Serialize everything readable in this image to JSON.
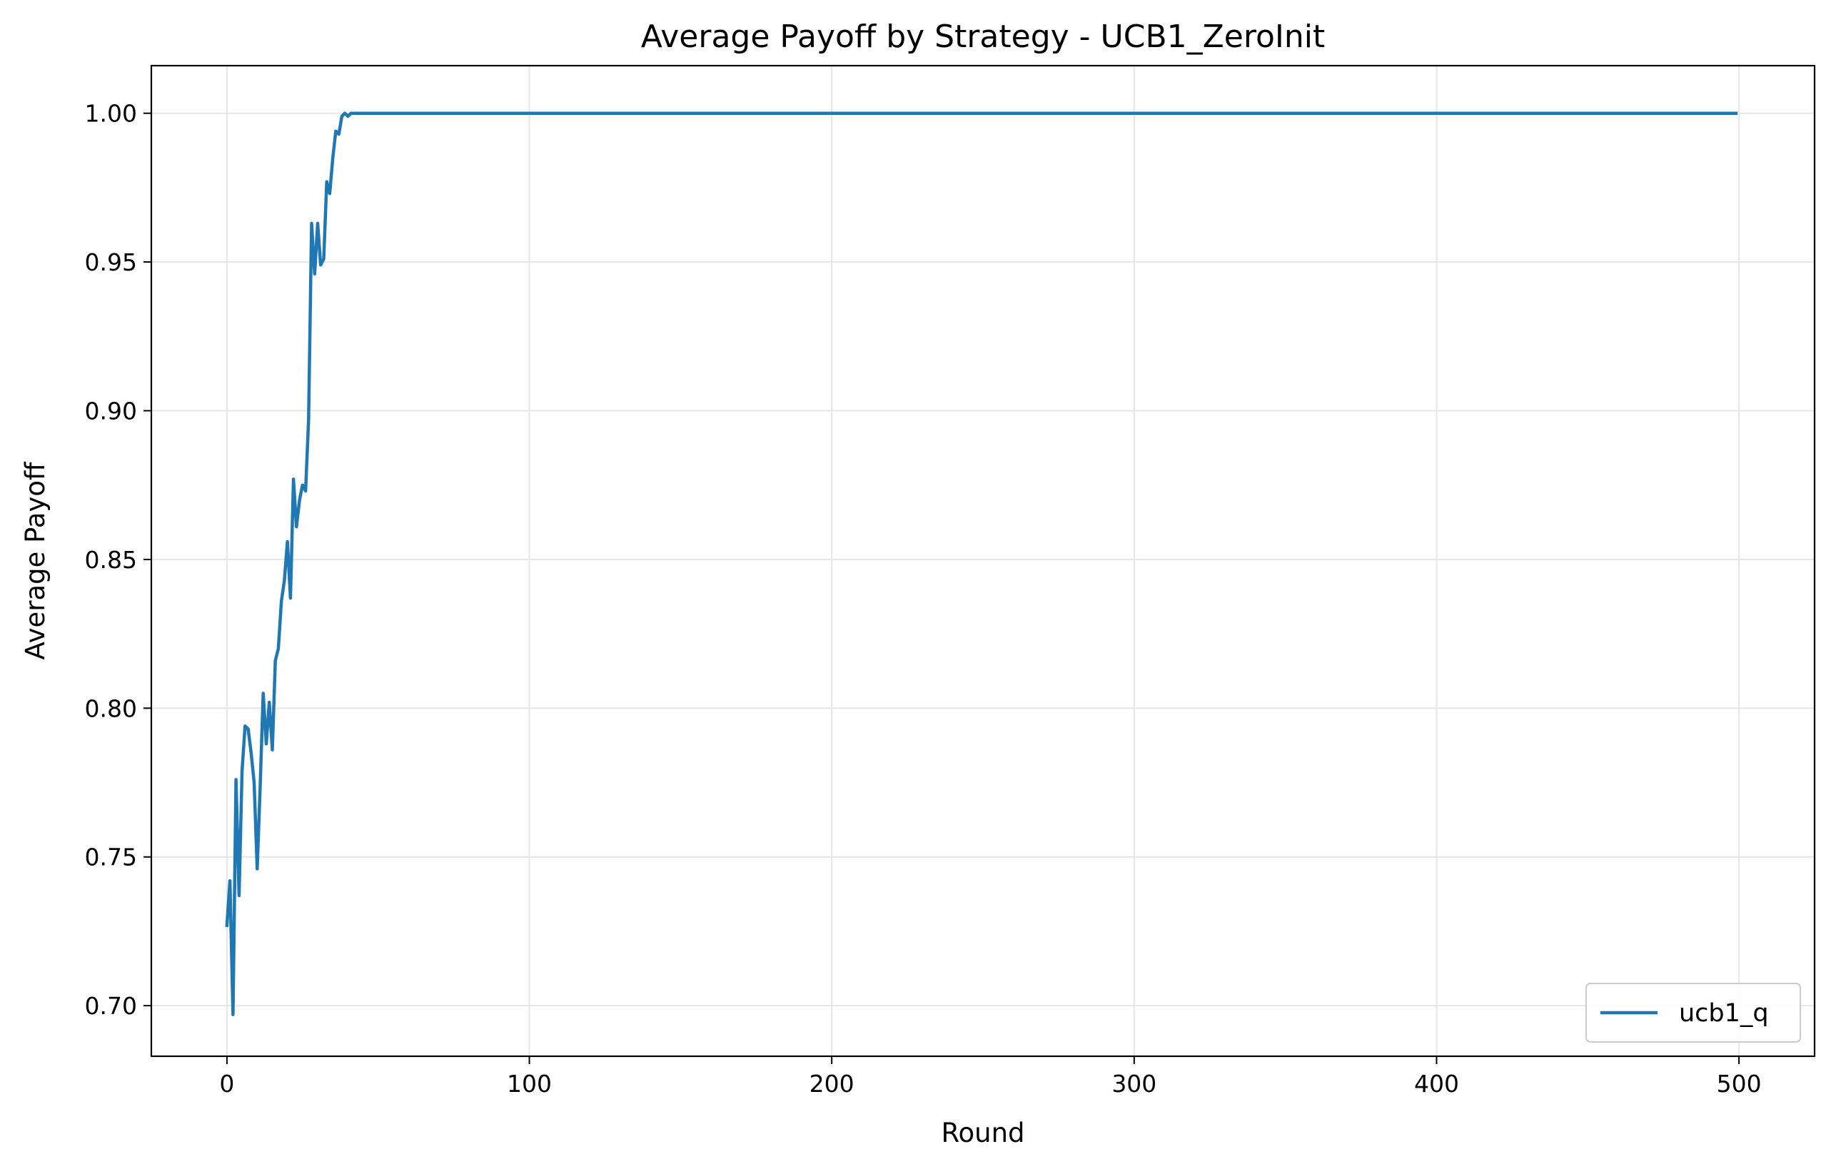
{
  "chart_data": {
    "type": "line",
    "title": "Average Payoff by Strategy - UCB1_ZeroInit",
    "xlabel": "Round",
    "ylabel": "Average Payoff",
    "xlim": [
      -25,
      525
    ],
    "ylim": [
      0.683,
      1.016
    ],
    "xticks": [
      0,
      100,
      200,
      300,
      400,
      500
    ],
    "yticks": [
      0.7,
      0.75,
      0.8,
      0.85,
      0.9,
      0.95,
      1.0
    ],
    "xtick_labels": [
      "0",
      "100",
      "200",
      "300",
      "400",
      "500"
    ],
    "ytick_labels": [
      "0.70",
      "0.75",
      "0.80",
      "0.85",
      "0.90",
      "0.95",
      "1.00"
    ],
    "grid": true,
    "legend_position": "lower-right",
    "series": [
      {
        "name": "ucb1_q",
        "color": "#1f77b4",
        "x": [
          0,
          1,
          2,
          3,
          4,
          5,
          6,
          7,
          8,
          9,
          10,
          11,
          12,
          13,
          14,
          15,
          16,
          17,
          18,
          19,
          20,
          21,
          22,
          23,
          24,
          25,
          26,
          27,
          28,
          29,
          30,
          31,
          32,
          33,
          34,
          35,
          36,
          37,
          38,
          39,
          40,
          41,
          42,
          60,
          100,
          200,
          300,
          400,
          499
        ],
        "y": [
          0.727,
          0.742,
          0.697,
          0.776,
          0.737,
          0.779,
          0.794,
          0.793,
          0.785,
          0.775,
          0.746,
          0.774,
          0.805,
          0.788,
          0.802,
          0.786,
          0.816,
          0.82,
          0.836,
          0.843,
          0.856,
          0.837,
          0.877,
          0.861,
          0.87,
          0.875,
          0.873,
          0.897,
          0.963,
          0.946,
          0.963,
          0.949,
          0.951,
          0.977,
          0.973,
          0.985,
          0.994,
          0.993,
          0.999,
          1.0,
          0.999,
          1.0,
          1.0,
          1.0,
          1.0,
          1.0,
          1.0,
          1.0,
          1.0
        ]
      }
    ]
  }
}
